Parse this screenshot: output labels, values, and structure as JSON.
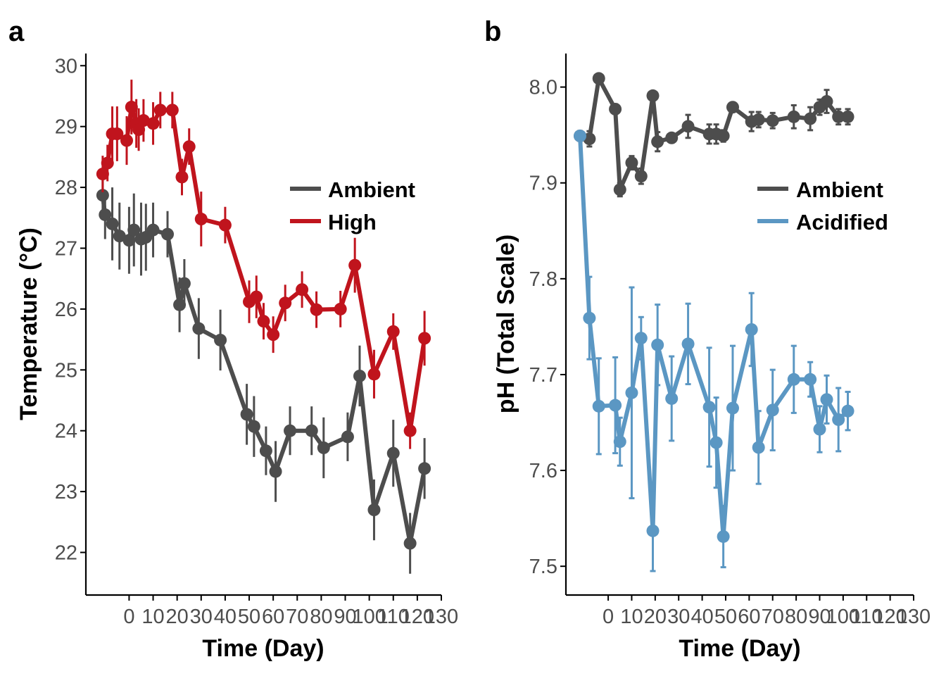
{
  "chart_data": [
    {
      "panel_label": "a",
      "type": "line",
      "xlabel": "Time (Day)",
      "ylabel": "Temperature (°C)",
      "xlim": [
        -18,
        130
      ],
      "ylim": [
        21.3,
        30.2
      ],
      "x_ticks": [
        0,
        10,
        20,
        30,
        40,
        50,
        60,
        70,
        80,
        90,
        100,
        110,
        120,
        130
      ],
      "x_tick_labels": [
        "0",
        "10",
        "20",
        "30",
        "40",
        "50",
        "60",
        "70",
        "80",
        "90",
        "100",
        "110",
        "120",
        "130"
      ],
      "y_ticks": [
        22,
        23,
        24,
        25,
        26,
        27,
        28,
        29,
        30
      ],
      "y_tick_labels": [
        "22",
        "23",
        "24",
        "25",
        "26",
        "27",
        "28",
        "29",
        "30"
      ],
      "legend": "right",
      "grid": false,
      "error_bars": true,
      "series": [
        {
          "name": "Ambient",
          "color": "#4d4d4d",
          "x": [
            -11,
            -10,
            -7,
            -4,
            0,
            2,
            5,
            7,
            10,
            16,
            21,
            23,
            29,
            38,
            49,
            52,
            57,
            61,
            67,
            76,
            81,
            91,
            96,
            102,
            110,
            117,
            123
          ],
          "y": [
            27.87,
            27.55,
            27.4,
            27.2,
            27.13,
            27.3,
            27.15,
            27.18,
            27.3,
            27.23,
            26.07,
            26.42,
            25.68,
            25.49,
            24.27,
            24.07,
            23.67,
            23.33,
            24.0,
            24.0,
            23.72,
            23.9,
            24.9,
            22.7,
            23.63,
            22.15,
            23.38
          ],
          "err": [
            0.3,
            0.4,
            0.6,
            0.55,
            0.55,
            0.6,
            0.6,
            0.55,
            0.45,
            0.38,
            0.45,
            0.4,
            0.5,
            0.5,
            0.5,
            0.5,
            0.4,
            0.5,
            0.4,
            0.4,
            0.5,
            0.4,
            0.5,
            0.5,
            0.55,
            0.5,
            0.5
          ]
        },
        {
          "name": "High",
          "color": "#c0141d",
          "x": [
            -11,
            -9,
            -7,
            -5,
            -1,
            1,
            3,
            4,
            6,
            10,
            13,
            18,
            22,
            25,
            30,
            40,
            50,
            53,
            56,
            60,
            65,
            72,
            78,
            88,
            94,
            102,
            110,
            117,
            123
          ],
          "y": [
            28.22,
            28.4,
            28.88,
            28.88,
            28.77,
            29.32,
            29.05,
            28.95,
            29.1,
            29.05,
            29.27,
            29.27,
            28.17,
            28.67,
            27.48,
            27.38,
            26.12,
            26.2,
            25.8,
            25.58,
            26.1,
            26.32,
            25.99,
            26.0,
            26.72,
            24.93,
            25.63,
            24.0,
            25.52
          ],
          "err": [
            0.3,
            0.3,
            0.45,
            0.45,
            0.4,
            0.45,
            0.4,
            0.35,
            0.35,
            0.35,
            0.3,
            0.3,
            0.3,
            0.3,
            0.45,
            0.3,
            0.35,
            0.35,
            0.3,
            0.3,
            0.3,
            0.3,
            0.3,
            0.3,
            0.45,
            0.4,
            0.3,
            0.3,
            0.45
          ]
        }
      ]
    },
    {
      "panel_label": "b",
      "type": "line",
      "xlabel": "Time (Day)",
      "ylabel": "pH (Total Scale)",
      "xlim": [
        -18,
        130
      ],
      "ylim": [
        7.47,
        8.035
      ],
      "x_ticks": [
        0,
        10,
        20,
        30,
        40,
        50,
        60,
        70,
        80,
        90,
        100,
        110,
        120,
        130
      ],
      "x_tick_labels": [
        "0",
        "10",
        "20",
        "30",
        "40",
        "50",
        "60",
        "70",
        "80",
        "90",
        "100",
        "110",
        "120",
        "130"
      ],
      "y_ticks": [
        7.5,
        7.6,
        7.7,
        7.8,
        7.9,
        8.0
      ],
      "y_tick_labels": [
        "7.5",
        "7.6",
        "7.7",
        "7.8",
        "7.9",
        "8.0"
      ],
      "legend": "right",
      "grid": false,
      "error_bars": true,
      "series": [
        {
          "name": "Ambient",
          "color": "#4d4d4d",
          "x": [
            -12,
            -8,
            -4,
            3,
            5,
            10,
            14,
            19,
            21,
            27,
            34,
            43,
            46,
            49,
            53,
            61,
            64,
            70,
            79,
            86,
            90,
            93,
            98,
            102
          ],
          "y": [
            7.949,
            7.946,
            8.009,
            7.977,
            7.893,
            7.921,
            7.907,
            7.991,
            7.943,
            7.947,
            7.959,
            7.951,
            7.951,
            7.949,
            7.979,
            7.964,
            7.966,
            7.965,
            7.969,
            7.967,
            7.979,
            7.985,
            7.969,
            7.969
          ],
          "err": [
            0.005,
            0.008,
            0.003,
            0.005,
            0.007,
            0.007,
            0.008,
            0.004,
            0.01,
            0.005,
            0.012,
            0.01,
            0.01,
            0.006,
            0.004,
            0.01,
            0.008,
            0.008,
            0.012,
            0.012,
            0.008,
            0.012,
            0.008,
            0.008
          ],
          "x_exact": false
        },
        {
          "name": "Acidified",
          "color": "#5b97c3",
          "y": [
            7.949,
            7.759,
            7.667,
            7.668,
            7.63,
            7.681,
            7.738,
            7.537,
            7.731,
            7.675,
            7.732,
            7.666,
            7.629,
            7.531,
            7.665,
            7.747,
            7.624,
            7.663,
            7.695,
            7.695,
            7.643,
            7.674,
            7.653,
            7.662
          ],
          "err": [
            0.004,
            0.043,
            0.05,
            0.05,
            0.025,
            0.11,
            0.022,
            0.042,
            0.042,
            0.044,
            0.042,
            0.062,
            0.047,
            0.032,
            0.065,
            0.038,
            0.038,
            0.042,
            0.035,
            0.018,
            0.024,
            0.025,
            0.033,
            0.02
          ]
        }
      ]
    }
  ]
}
